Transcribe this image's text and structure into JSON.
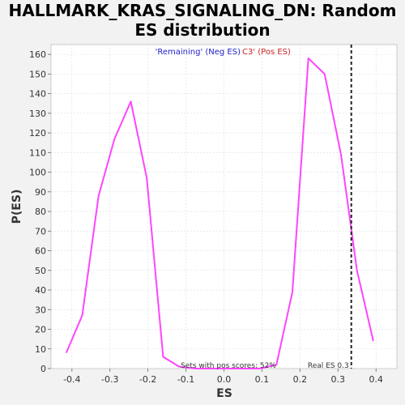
{
  "chart_data": {
    "type": "line",
    "title_line1": "HALLMARK_KRAS_SIGNALING_DN: Random",
    "title_line2": "ES distribution",
    "xlabel": "ES",
    "ylabel": "P(ES)",
    "xlim": [
      -0.455,
      0.455
    ],
    "ylim": [
      0,
      165
    ],
    "x_ticks": [
      -0.4,
      -0.3,
      -0.2,
      -0.1,
      0.0,
      0.1,
      0.2,
      0.3,
      0.4
    ],
    "x_tick_labels": [
      "-0.4",
      "-0.3",
      "-0.2",
      "-0.1",
      "0.0",
      "0.1",
      "0.2",
      "0.3",
      "0.4"
    ],
    "y_ticks": [
      0,
      10,
      20,
      30,
      40,
      50,
      60,
      70,
      80,
      90,
      100,
      110,
      120,
      130,
      140,
      150,
      160
    ],
    "grid": true,
    "legend_position": "top-center",
    "legend": [
      {
        "label": "'Remaining' (Neg ES)",
        "color": "#2222cc"
      },
      {
        "label": "C3' (Pos ES)",
        "color": "#cc2222"
      }
    ],
    "series": [
      {
        "color": "#ff44ff",
        "points": [
          [
            -0.415,
            8
          ],
          [
            -0.373,
            27
          ],
          [
            -0.33,
            88
          ],
          [
            -0.288,
            117
          ],
          [
            -0.245,
            136
          ],
          [
            -0.203,
            97
          ],
          [
            -0.16,
            6
          ],
          [
            -0.118,
            1
          ],
          [
            -0.075,
            0
          ],
          [
            -0.033,
            0
          ],
          [
            0.01,
            0
          ],
          [
            0.052,
            0
          ],
          [
            0.095,
            0
          ],
          [
            0.138,
            2
          ],
          [
            0.18,
            39
          ],
          [
            0.222,
            158
          ],
          [
            0.265,
            150
          ],
          [
            0.308,
            109
          ],
          [
            0.35,
            50
          ],
          [
            0.393,
            14
          ]
        ]
      }
    ],
    "real_es": 0.335,
    "real_es_label": "Real ES 0.3",
    "pos_scores_label": "Sets with pos scores: 52%"
  }
}
